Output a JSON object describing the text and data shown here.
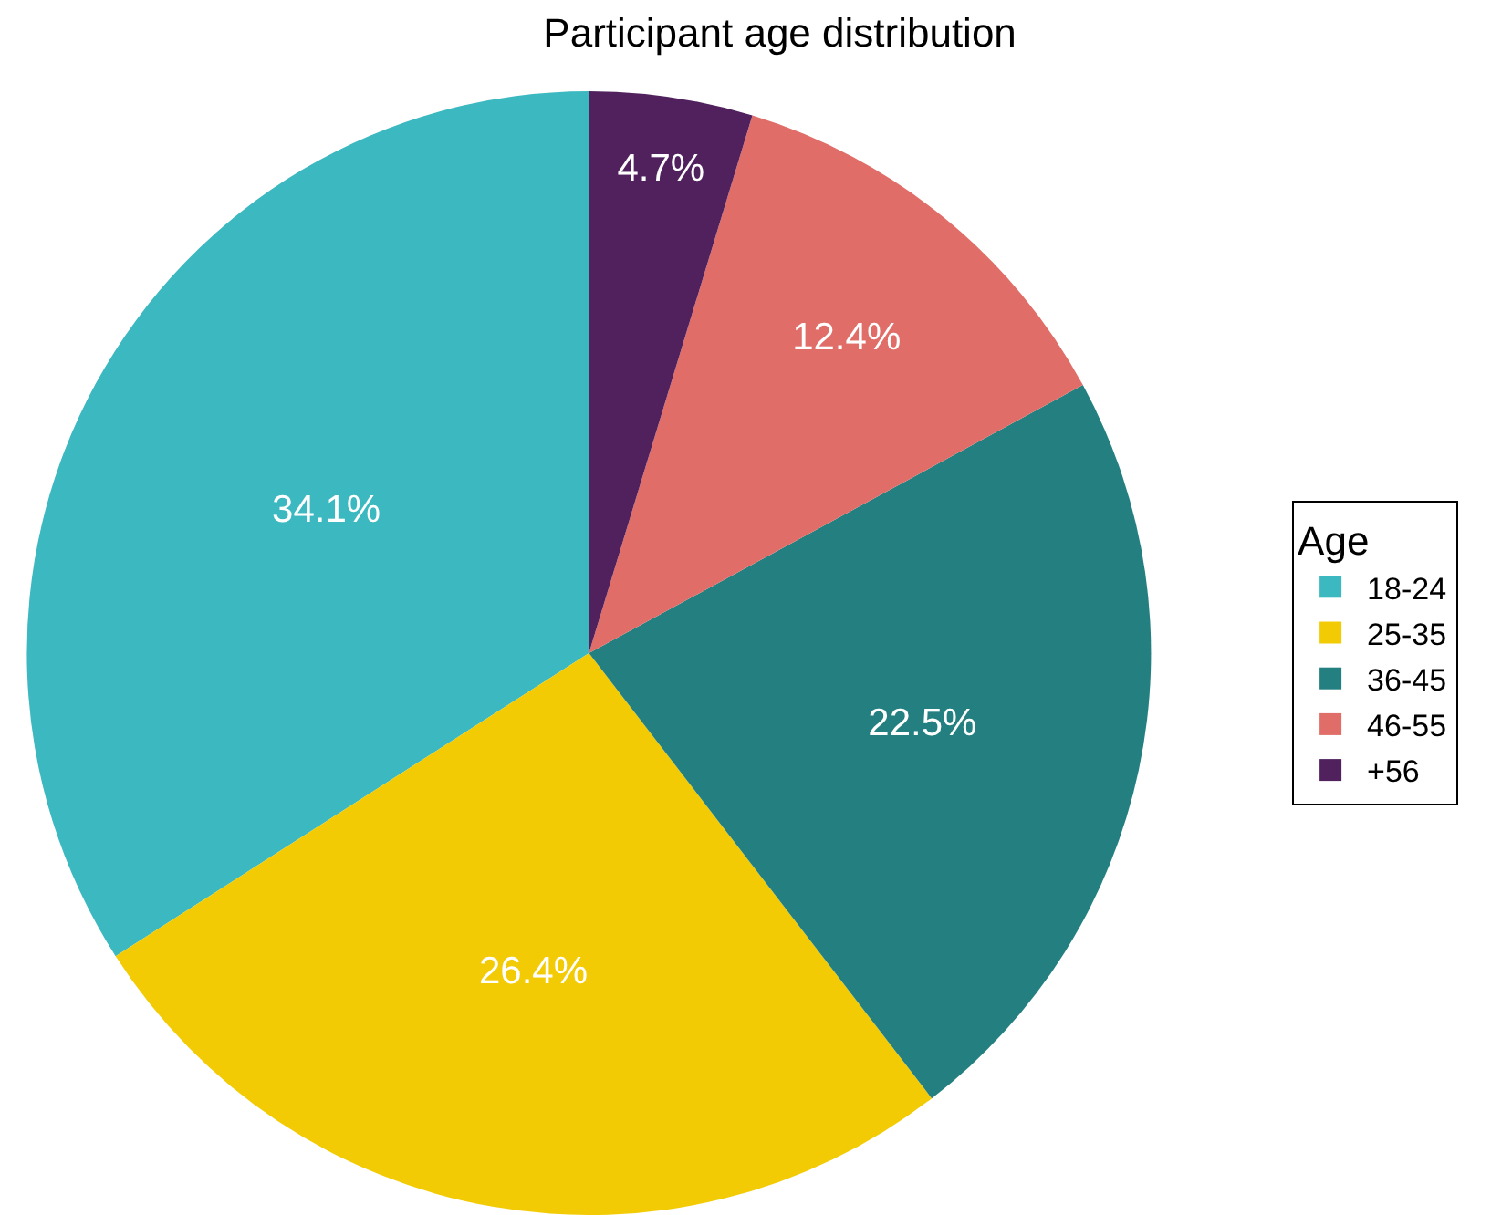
{
  "chart_data": {
    "type": "pie",
    "title": "Participant age distribution",
    "legend_title": "Age",
    "legend": "right",
    "categories": [
      "18-24",
      "25-35",
      "36-45",
      "46-55",
      "+56"
    ],
    "values": [
      34.1,
      26.4,
      22.5,
      12.4,
      4.7
    ],
    "value_labels": [
      "34.1%",
      "26.4%",
      "22.5%",
      "12.4%",
      "4.7%"
    ],
    "colors": [
      "#3bb8c0",
      "#f2cb05",
      "#248080",
      "#e06d67",
      "#51215e"
    ]
  }
}
